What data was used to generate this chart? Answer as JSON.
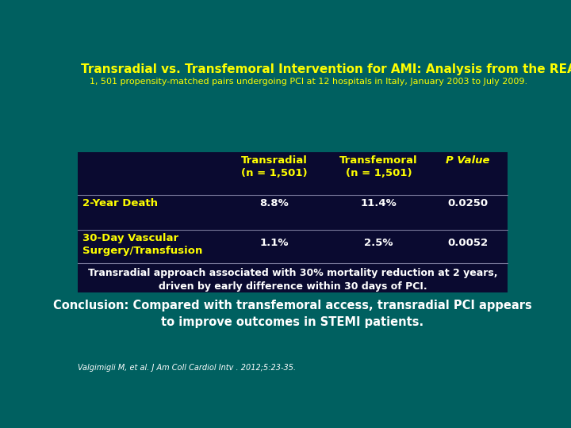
{
  "title": "Transradial vs. Transfemoral Intervention for AMI: Analysis from the REAL Registry",
  "subtitle": "1, 501 propensity-matched pairs undergoing PCI at 12 hospitals in Italy, January 2003 to July 2009.",
  "bg_color": "#006060",
  "table_bg_color": "#0a0a30",
  "title_color": "#ffff00",
  "subtitle_color": "#ffff00",
  "header_color": "#ffff00",
  "row_label_color": "#ffff00",
  "data_color": "#ffffff",
  "conclusion_color": "#ffffff",
  "citation_color": "#ffffff",
  "col_headers": [
    "Transradial\n(n = 1,501)",
    "Transfemoral\n(n = 1,501)",
    "P Value"
  ],
  "rows": [
    {
      "label": "2-Year Death",
      "values": [
        "8.8%",
        "11.4%",
        "0.0250"
      ]
    },
    {
      "label": "30-Day Vascular\nSurgery/Transfusion",
      "values": [
        "1.1%",
        "2.5%",
        "0.0052"
      ]
    }
  ],
  "footnote": "Transradial approach associated with 30% mortality reduction at 2 years,\ndriven by early difference within 30 days of PCI.",
  "conclusion": "Conclusion: Compared with transfemoral access, transradial PCI appears\nto improve outcomes in STEMI patients.",
  "citation": "Valgimigli M, et al. J Am Coll Cardiol Intv . 2012;5:23-35."
}
